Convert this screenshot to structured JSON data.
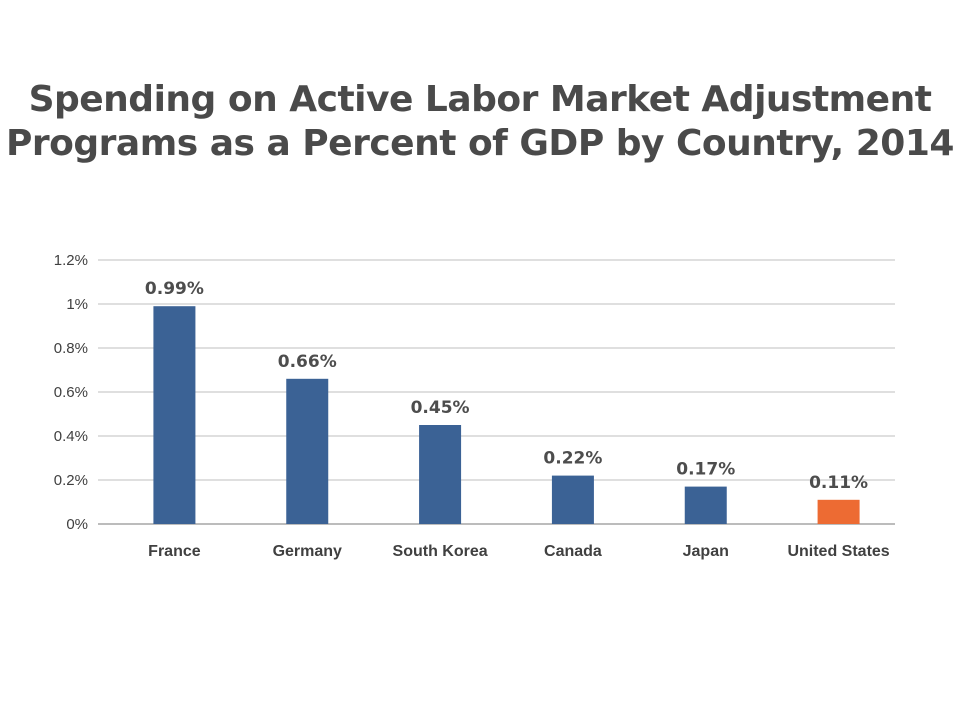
{
  "chart_data": {
    "type": "bar",
    "title_lines": [
      "Spending on Active Labor Market Adjustment",
      "Programs as a Percent of GDP by Country, 2014"
    ],
    "categories": [
      "France",
      "Germany",
      "South Korea",
      "Canada",
      "Japan",
      "United States"
    ],
    "values": [
      0.99,
      0.66,
      0.45,
      0.22,
      0.17,
      0.11
    ],
    "data_labels": [
      "0.99%",
      "0.66%",
      "0.45%",
      "0.22%",
      "0.17%",
      "0.11%"
    ],
    "y_ticks": [
      0,
      0.2,
      0.4,
      0.6,
      0.8,
      1.0,
      1.2
    ],
    "y_tick_labels": [
      "0%",
      "0.2%",
      "0.4%",
      "0.6%",
      "0.8%",
      "1%",
      "1.2%"
    ],
    "ylim": [
      0,
      1.2
    ],
    "xlabel": "",
    "ylabel": "",
    "grid": true,
    "legend": "none",
    "colors": {
      "default_bar": "#3b6295",
      "highlight_bar": "#ed6b33",
      "grid": "#bfbfbf",
      "axis": "#a6a6a6"
    },
    "highlight_category": "United States"
  }
}
